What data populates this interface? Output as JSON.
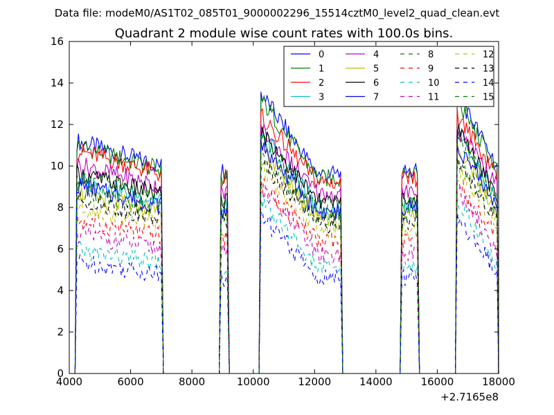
{
  "chart_data": {
    "type": "line",
    "suptitle": "Data file: modeM0/AS1T02_085T01_9000002296_15514cztM0_level2_quad_clean.evt",
    "title": "Quadrant 2 module wise count rates with 100.0s bins.",
    "xlabel": "",
    "ylabel": "",
    "offset_text": "+2.7165e8",
    "xlim": [
      4000,
      18000
    ],
    "ylim": [
      0,
      16
    ],
    "xticks": [
      4000,
      6000,
      8000,
      10000,
      12000,
      14000,
      16000,
      18000
    ],
    "yticks": [
      0,
      2,
      4,
      6,
      8,
      10,
      12,
      14,
      16
    ],
    "grid": false,
    "legend_position": "top-right",
    "segments": [
      {
        "start": 4250,
        "end": 7000
      },
      {
        "start": 8950,
        "end": 9150
      },
      {
        "start": 10250,
        "end": 12850
      },
      {
        "start": 14850,
        "end": 15350
      },
      {
        "start": 16650,
        "end": 17950
      }
    ],
    "series": [
      {
        "name": "0",
        "color": "#0000ff",
        "dash": "solid",
        "level": 10.0,
        "peak": 13.5
      },
      {
        "name": "1",
        "color": "#008000",
        "dash": "solid",
        "level": 9.8,
        "peak": 13.2
      },
      {
        "name": "2",
        "color": "#ff0000",
        "dash": "solid",
        "level": 9.6,
        "peak": 12.4
      },
      {
        "name": "3",
        "color": "#00bfbf",
        "dash": "solid",
        "level": 8.3,
        "peak": 11.6
      },
      {
        "name": "4",
        "color": "#bf00bf",
        "dash": "solid",
        "level": 9.0,
        "peak": 11.8
      },
      {
        "name": "5",
        "color": "#bfbf00",
        "dash": "solid",
        "level": 7.8,
        "peak": 10.8
      },
      {
        "name": "6",
        "color": "#000000",
        "dash": "solid",
        "level": 8.6,
        "peak": 11.7
      },
      {
        "name": "7",
        "color": "#0000ff",
        "dash": "solid",
        "level": 8.1,
        "peak": 11.0
      },
      {
        "name": "8",
        "color": "#008000",
        "dash": "dashed",
        "level": 7.8,
        "peak": 10.4
      },
      {
        "name": "9",
        "color": "#ff0000",
        "dash": "dashed",
        "level": 6.6,
        "peak": 9.2
      },
      {
        "name": "10",
        "color": "#00bfbf",
        "dash": "dashed",
        "level": 5.3,
        "peak": 8.4
      },
      {
        "name": "11",
        "color": "#bf00bf",
        "dash": "dashed",
        "level": 6.0,
        "peak": 8.9
      },
      {
        "name": "12",
        "color": "#bfbf00",
        "dash": "dashed",
        "level": 7.2,
        "peak": 9.9
      },
      {
        "name": "13",
        "color": "#000000",
        "dash": "dashed",
        "level": 7.5,
        "peak": 10.2
      },
      {
        "name": "14",
        "color": "#0000ff",
        "dash": "dashed",
        "level": 4.8,
        "peak": 7.6
      },
      {
        "name": "15",
        "color": "#008000",
        "dash": "dashed",
        "level": 8.5,
        "peak": 11.4
      }
    ]
  }
}
